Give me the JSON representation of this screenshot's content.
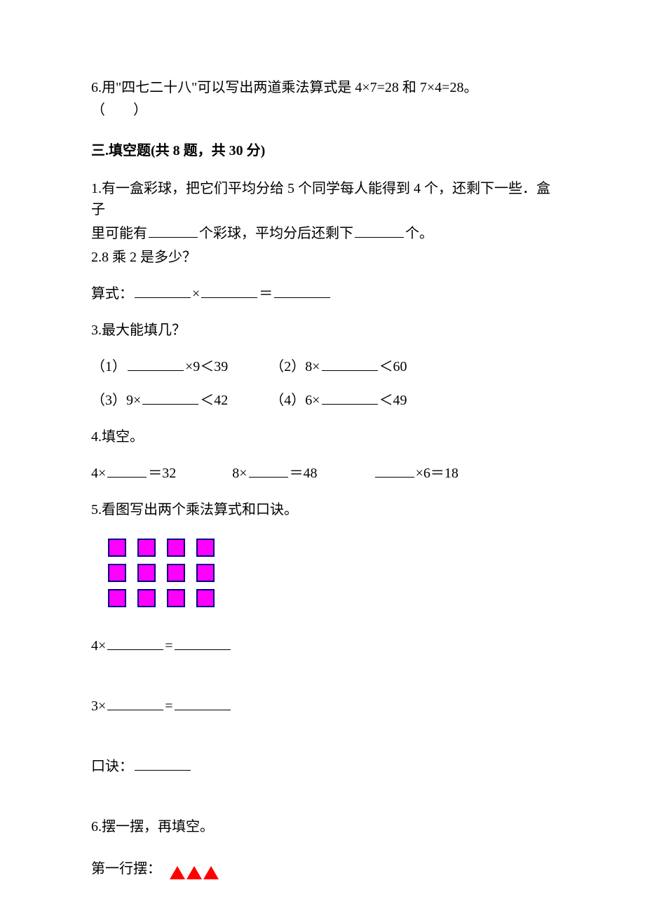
{
  "prev": {
    "q6_line1": "6.用\"四七二十八\"可以写出两道乘法算式是 4×7=28 和 7×4=28。",
    "q6_line2": "（　　）"
  },
  "section3": {
    "heading": "三.填空题(共 8 题，共 30 分)",
    "q1_a": "1.有一盒彩球，把它们平均分给 5 个同学每人能得到 4 个，还剩下一些．盒子",
    "q1_b_pre": "里可能有",
    "q1_b_mid": "个彩球，平均分后还剩下",
    "q1_b_post": "个。",
    "q2": "2.8 乘 2 是多少？",
    "q2_eq_pre": "算式：",
    "q2_eq_x": "×",
    "q2_eq_eq": "＝",
    "q3": "3.最大能填几？",
    "q3_1_pre": "（1）",
    "q3_1_post": "×9＜39",
    "q3_2_pre": "（2）8×",
    "q3_2_post": "＜60",
    "q3_3_pre": "（3）9×",
    "q3_3_post": "＜42",
    "q3_4_pre": "（4）6×",
    "q3_4_post": "＜49",
    "q4": "4.填空。",
    "q4_a_pre": "4×",
    "q4_a_post": "＝32",
    "q4_b_pre": "8×",
    "q4_b_post": "＝48",
    "q4_c_post": "×6＝18",
    "q5": "5.看图写出两个乘法算式和口诀。",
    "q5_grid": {
      "rows": 3,
      "cols": 4,
      "fill": "#ff00ff",
      "border": "#000080"
    },
    "q5_eq1_pre": "4×",
    "q5_eq1_mid": "=",
    "q5_eq2_pre": "3×",
    "q5_eq2_mid": "=",
    "q5_koujue": "口诀：",
    "q6": "6.摆一摆，再填空。",
    "q6_row1_label": "第一行摆：",
    "q6_triangle": {
      "count": 3,
      "color": "#ff0000"
    }
  },
  "colors": {
    "text": "#000000",
    "background": "#ffffff"
  }
}
